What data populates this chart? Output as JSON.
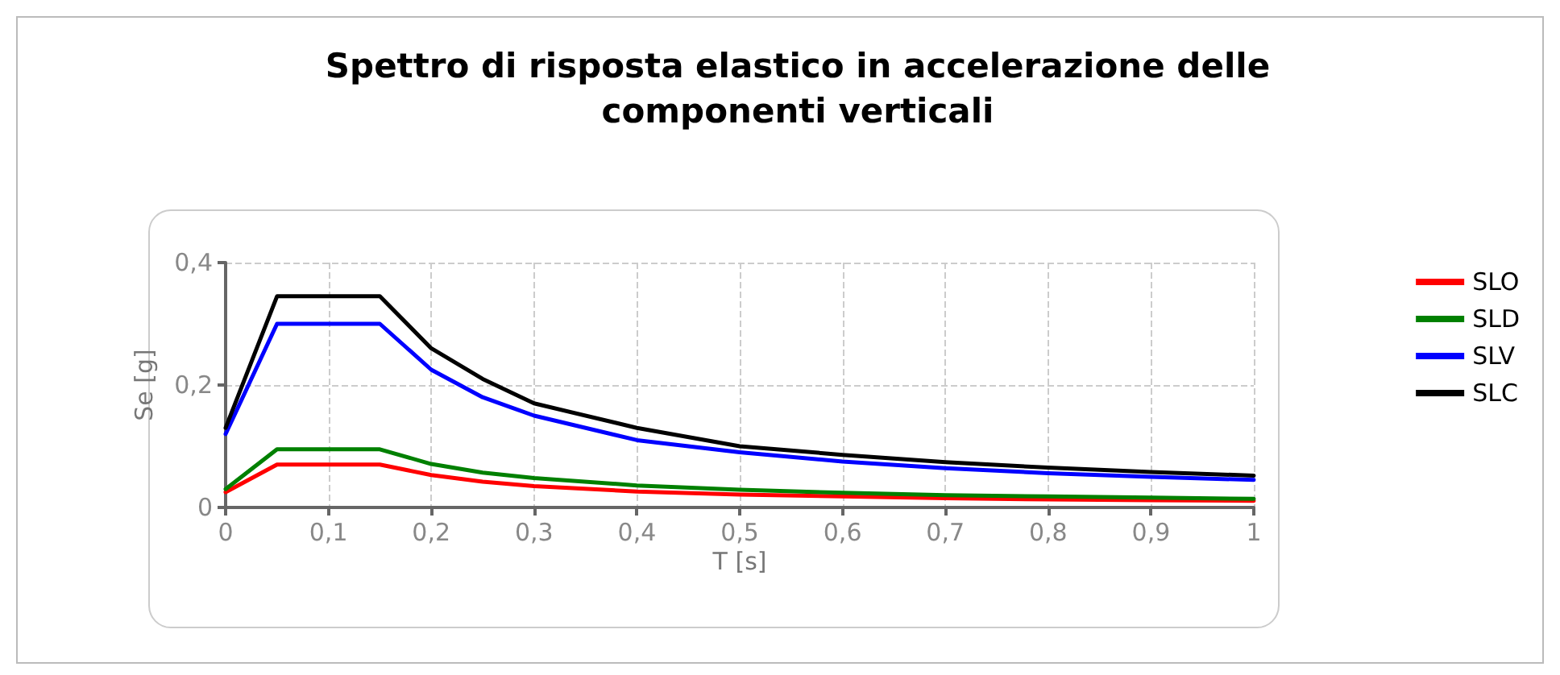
{
  "chart_data": {
    "type": "line",
    "title": "Spettro di risposta elastico in accelerazione delle\ncomponenti verticali",
    "xlabel": "T [s]",
    "ylabel": "Se [g]",
    "x": [
      0,
      0.05,
      0.15,
      0.2,
      0.25,
      0.3,
      0.4,
      0.5,
      0.6,
      0.7,
      0.8,
      0.9,
      1
    ],
    "series": [
      {
        "name": "SLO",
        "color": "#ff0000",
        "values": [
          0.025,
          0.07,
          0.07,
          0.053,
          0.042,
          0.035,
          0.026,
          0.021,
          0.018,
          0.015,
          0.013,
          0.012,
          0.011
        ]
      },
      {
        "name": "SLD",
        "color": "#008000",
        "values": [
          0.03,
          0.095,
          0.095,
          0.071,
          0.057,
          0.048,
          0.036,
          0.029,
          0.024,
          0.02,
          0.018,
          0.016,
          0.014
        ]
      },
      {
        "name": "SLV",
        "color": "#0000ff",
        "values": [
          0.12,
          0.3,
          0.3,
          0.225,
          0.18,
          0.15,
          0.11,
          0.09,
          0.075,
          0.064,
          0.056,
          0.05,
          0.045
        ]
      },
      {
        "name": "SLC",
        "color": "#000000",
        "values": [
          0.13,
          0.345,
          0.345,
          0.26,
          0.21,
          0.17,
          0.13,
          0.1,
          0.086,
          0.074,
          0.065,
          0.058,
          0.052
        ]
      }
    ],
    "xlim": [
      0,
      1
    ],
    "xticks": [
      0,
      {
        "value": 0.1,
        "label": "0,1"
      },
      {
        "value": 0.2,
        "label": "0,2"
      },
      {
        "value": 0.3,
        "label": "0,3"
      },
      {
        "value": 0.4,
        "label": "0,4"
      },
      {
        "value": 0.5,
        "label": "0,5"
      },
      {
        "value": 0.6,
        "label": "0,6"
      },
      {
        "value": 0.7,
        "label": "0,7"
      },
      {
        "value": 0.8,
        "label": "0,8"
      },
      {
        "value": 0.9,
        "label": "0,9"
      },
      1
    ],
    "ylim": [
      0,
      0.4
    ],
    "yticks": [
      0,
      {
        "value": 0.2,
        "label": "0,2"
      },
      {
        "value": 0.4,
        "label": "0,4"
      }
    ],
    "grid": true,
    "legend": "right",
    "marker": "none",
    "line_style": "solid"
  }
}
